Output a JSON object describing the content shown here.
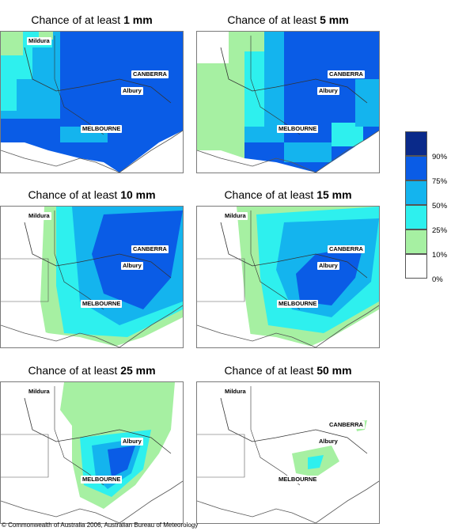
{
  "panels": [
    {
      "prefix": "Chance of at least ",
      "amount": "1 mm"
    },
    {
      "prefix": "Chance of at least ",
      "amount": "5 mm"
    },
    {
      "prefix": "Chance of at least ",
      "amount": "10 mm"
    },
    {
      "prefix": "Chance of at least ",
      "amount": "15 mm"
    },
    {
      "prefix": "Chance of at least ",
      "amount": "25 mm"
    },
    {
      "prefix": "Chance of at least ",
      "amount": "50 mm"
    }
  ],
  "places": {
    "mildura": "Mildura",
    "canberra": "CANBERRA",
    "albury": "Albury",
    "melbourne": "MELBOURNE"
  },
  "legend": {
    "bands": [
      {
        "color": "#0a2a8a",
        "label": "90%"
      },
      {
        "color": "#0a5ce6",
        "label": "75%"
      },
      {
        "color": "#14b4ee",
        "label": "50%"
      },
      {
        "color": "#2ef0ee",
        "label": "25%"
      },
      {
        "color": "#a6f0a2",
        "label": "10%"
      },
      {
        "color": "#ffffff",
        "label": "0%"
      }
    ]
  },
  "copyright": "© Commonwealth of Australia 2006, Australian Bureau of Meteorology"
}
